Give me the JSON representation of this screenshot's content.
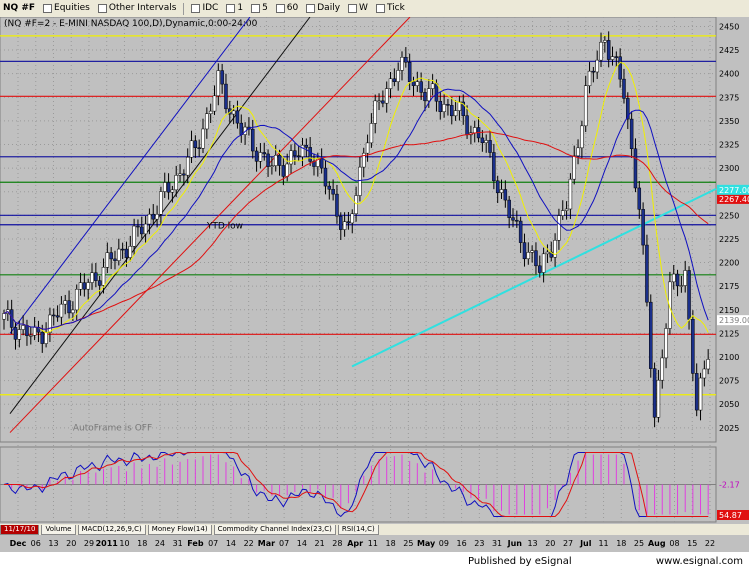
{
  "toolbar": {
    "symbol": "NQ #F",
    "equities": "Equities",
    "other_intervals": "Other Intervals",
    "idc": "IDC",
    "i1": "1",
    "i5": "5",
    "i60": "60",
    "daily": "Daily",
    "weekly": "W",
    "tick": "Tick"
  },
  "tabs": [
    "11/17/10",
    "Volume",
    "MACD(12,26,9,C)",
    "Money Flow(14)",
    "Commodity Channel Index(23,C)",
    "RSI(14,C)"
  ],
  "footer": {
    "published": "Published by eSignal",
    "url": "www.esignal.com"
  },
  "colors": {
    "background": "#c0c0c0",
    "up_bar": "#ffffff",
    "down_bar": "#1a2f8a",
    "red_line": "#e01010",
    "blue_line": "#1010c0",
    "yellow_line": "#f0f000",
    "cyan_line": "#30e0e0",
    "green_line": "#108010"
  },
  "chart_data": {
    "type": "candlestick",
    "title": "(NQ #F=2 - E-MINI NASDAQ 100,D),Dynamic,0:00-24:00",
    "ylim": [
      2010,
      2460
    ],
    "y_ticks": [
      2025,
      2050,
      2075,
      2100,
      2125,
      2150,
      2175,
      2200,
      2225,
      2250,
      2275,
      2300,
      2325,
      2350,
      2375,
      2400,
      2425,
      2450
    ],
    "x_labels": [
      "Dec",
      "06",
      "13",
      "20",
      "29",
      "2011",
      "10",
      "18",
      "24",
      "31",
      "Feb",
      "07",
      "14",
      "22",
      "Mar",
      "07",
      "14",
      "21",
      "28",
      "Apr",
      "11",
      "18",
      "25",
      "May",
      "09",
      "16",
      "23",
      "31",
      "Jun",
      "13",
      "20",
      "27",
      "Jul",
      "11",
      "18",
      "25",
      "Aug",
      "08",
      "15",
      "22"
    ],
    "price_labels": [
      {
        "value": 2267.4,
        "text": "2267.40",
        "color": "#e01010"
      },
      {
        "value": 2277.0,
        "text": "2277.00",
        "color": "#30e0e0"
      },
      {
        "value": 2139.0,
        "text": "2139.00",
        "color": "#ffffff"
      }
    ],
    "horizontal_levels": [
      {
        "value": 2440,
        "color": "#f0f000"
      },
      {
        "value": 2413,
        "color": "#2020a0"
      },
      {
        "value": 2376,
        "color": "#e01010"
      },
      {
        "value": 2312,
        "color": "#2020a0"
      },
      {
        "value": 2285,
        "color": "#108010"
      },
      {
        "value": 2250,
        "color": "#1010a0"
      },
      {
        "value": 2240,
        "color": "#1010a0"
      },
      {
        "value": 2187,
        "color": "#108010"
      },
      {
        "value": 2124,
        "color": "#e01010"
      },
      {
        "value": 2060,
        "color": "#f0f000"
      }
    ],
    "annotations": [
      {
        "text": "YTD low",
        "x_index": 53,
        "value": 2236,
        "color": "#000000"
      },
      {
        "text": "AutoFrame is OFF",
        "x_index": 18,
        "value": 2022,
        "color": "#7a7a7a"
      }
    ],
    "indicator_macd": {
      "label": "MACD(12,26,9,C)",
      "value_text": "-2.17"
    },
    "indicator_rsi": {
      "label": "RSI(14,C)",
      "value_text": "54.87"
    }
  }
}
